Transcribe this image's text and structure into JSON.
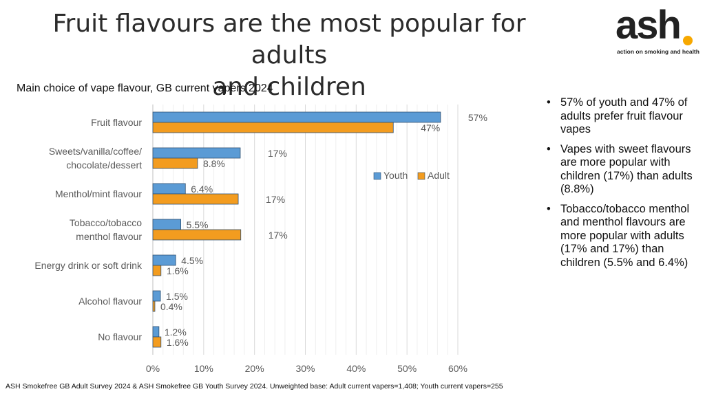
{
  "slide": {
    "title_line1": "Fruit flavours are the most popular for adults",
    "title_line2": "and children",
    "source_note": "ASH Smokefree GB Adult Survey 2024 & ASH Smokefree GB Youth Survey 2024. Unweighted base: Adult current vapers=1,408; Youth current vapers=255"
  },
  "logo": {
    "word": "ash",
    "tagline": "action on smoking and health",
    "accent_color": "#f7a800"
  },
  "bullets": [
    "57% of youth and 47% of adults prefer fruit flavour vapes",
    "Vapes with sweet flavours are more popular with children (17%) than adults (8.8%)",
    "Tobacco/tobacco menthol and menthol flavours are more popular with adults (17% and 17%) than children  (5.5% and 6.4%)"
  ],
  "chart_data": {
    "type": "bar",
    "orientation": "horizontal",
    "title": "Main choice of vape flavour, GB current vapers 2024",
    "categories": [
      [
        "Fruit flavour"
      ],
      [
        "Sweets/vanilla/coffee/",
        "chocolate/dessert"
      ],
      [
        "Menthol/mint flavour"
      ],
      [
        "Tobacco/tobacco",
        "menthol flavour"
      ],
      [
        "Energy drink or soft drink"
      ],
      [
        "Alcohol flavour"
      ],
      [
        "No flavour"
      ]
    ],
    "series": [
      {
        "name": "Youth",
        "color": "#5b9bd5",
        "values": [
          56.6,
          17.2,
          6.4,
          5.5,
          4.5,
          1.5,
          1.2
        ],
        "labels": [
          "57%",
          "17%",
          "6.4%",
          "5.5%",
          "4.5%",
          "1.5%",
          "1.2%"
        ]
      },
      {
        "name": "Adult",
        "color": "#f39c1f",
        "values": [
          47.3,
          8.8,
          16.8,
          17.3,
          1.6,
          0.4,
          1.6
        ],
        "labels": [
          "47%",
          "8.8%",
          "17%",
          "17%",
          "1.6%",
          "0.4%",
          "1.6%"
        ]
      }
    ],
    "xlim": [
      0,
      60
    ],
    "xticks": [
      0,
      10,
      20,
      30,
      40,
      50,
      60
    ],
    "xtick_labels": [
      "0%",
      "10%",
      "20%",
      "30%",
      "40%",
      "50%",
      "60%"
    ],
    "grid": true,
    "legend_position": "right-middle"
  }
}
